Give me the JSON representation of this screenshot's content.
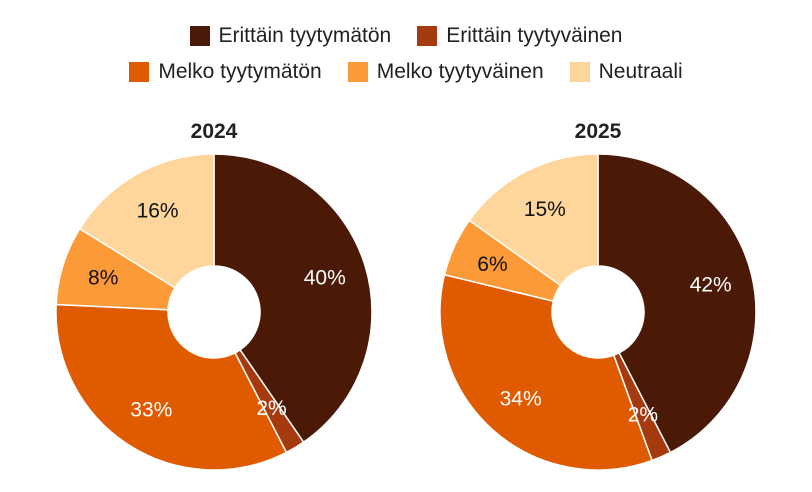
{
  "chart_data": [
    {
      "type": "pie",
      "title": "2024",
      "categories": [
        "Erittäin tyytymätön",
        "Erittäin tyytyväinen",
        "Melko tyytymätön",
        "Melko tyytyväinen",
        "Neutraali"
      ],
      "values": [
        40,
        2,
        33,
        8,
        16
      ],
      "labels": [
        "40%",
        "2%",
        "33%",
        "8%",
        "16%"
      ]
    },
    {
      "type": "pie",
      "title": "2025",
      "categories": [
        "Erittäin tyytymätön",
        "Erittäin tyytyväinen",
        "Melko tyytymätön",
        "Melko tyytyväinen",
        "Neutraali"
      ],
      "values": [
        42,
        2,
        34,
        6,
        15
      ],
      "labels": [
        "42%",
        "2%",
        "34%",
        "6%",
        "15%"
      ]
    }
  ],
  "legend": {
    "rows": [
      [
        {
          "label": "Erittäin tyytymätön",
          "color": "#4a1a06"
        },
        {
          "label": "Erittäin tyytyväinen",
          "color": "#a53a0e"
        }
      ],
      [
        {
          "label": "Melko tyytymätön",
          "color": "#e05a00"
        },
        {
          "label": "Melko tyytyväinen",
          "color": "#fd9a38"
        },
        {
          "label": "Neutraali",
          "color": "#fed59a"
        }
      ]
    ]
  },
  "colors": [
    "#4a1a06",
    "#a53a0e",
    "#e05a00",
    "#fd9a38",
    "#fed59a"
  ],
  "label_colors": [
    "#ffffff",
    "#ffffff",
    "#ffffff",
    "#111111",
    "#111111"
  ]
}
